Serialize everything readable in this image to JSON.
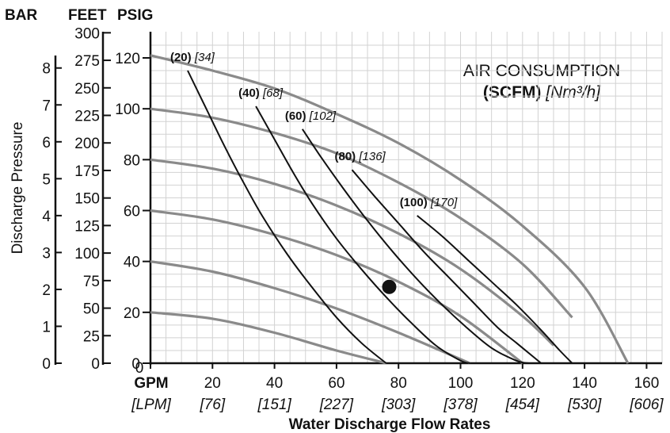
{
  "chart_data": {
    "type": "line",
    "title_line1": "AIR CONSUMPTION",
    "title_line2_bold": "(SCFM)",
    "title_line2_unit": "[Nm³/h]",
    "xlabel": "Water Discharge Flow Rates",
    "ylabel": "Discharge Pressure",
    "x_unit_primary": "GPM",
    "x_unit_secondary": "[LPM]",
    "y_headers": {
      "bar": "BAR",
      "feet": "FEET",
      "psig": "PSIG"
    },
    "xlim": [
      0,
      165
    ],
    "ylim": [
      0,
      125
    ],
    "x_ticks": [
      {
        "value": 0,
        "label": "0",
        "label2": ""
      },
      {
        "value": 20,
        "label": "20",
        "label2": "[76]"
      },
      {
        "value": 40,
        "label": "40",
        "label2": "[151]"
      },
      {
        "value": 60,
        "label": "60",
        "label2": "[227]"
      },
      {
        "value": 80,
        "label": "80",
        "label2": "[303]"
      },
      {
        "value": 100,
        "label": "100",
        "label2": "[378]"
      },
      {
        "value": 120,
        "label": "120",
        "label2": "[454]"
      },
      {
        "value": 140,
        "label": "140",
        "label2": "[530]"
      },
      {
        "value": 160,
        "label": "160",
        "label2": "[606]"
      }
    ],
    "psig_ticks": [
      0,
      20,
      40,
      60,
      80,
      100,
      120
    ],
    "feet_ticks": [
      0,
      25,
      50,
      75,
      100,
      125,
      150,
      175,
      200,
      225,
      250,
      275,
      300
    ],
    "bar_ticks": [
      0,
      1,
      2,
      3,
      4,
      5,
      6,
      7,
      8
    ],
    "performance_curves": [
      {
        "x": [
          0,
          20,
          40,
          60,
          76
        ],
        "y": [
          20,
          17.5,
          12,
          5,
          0
        ]
      },
      {
        "x": [
          0,
          20,
          40,
          60,
          80,
          103
        ],
        "y": [
          40,
          36,
          29.5,
          21.5,
          12,
          0
        ]
      },
      {
        "x": [
          0,
          20,
          40,
          60,
          80,
          100,
          120
        ],
        "y": [
          60,
          56.5,
          50.5,
          42.5,
          32,
          18.5,
          0
        ]
      },
      {
        "x": [
          0,
          20,
          40,
          60,
          80,
          100,
          120,
          130
        ],
        "y": [
          80,
          76.5,
          70.5,
          62,
          51,
          37,
          18.5,
          7
        ]
      },
      {
        "x": [
          0,
          20,
          40,
          60,
          80,
          100,
          120,
          136
        ],
        "y": [
          100,
          96.5,
          90.5,
          82.5,
          71,
          57,
          39,
          18
        ]
      },
      {
        "x": [
          0,
          20,
          40,
          60,
          80,
          100,
          120,
          140,
          154
        ],
        "y": [
          121,
          115,
          108,
          98,
          86.5,
          72,
          54,
          30,
          0
        ]
      }
    ],
    "air_consumption_curves": [
      {
        "label": "(20)",
        "label2": "[34]",
        "x": [
          12,
          18,
          24,
          30,
          36,
          44,
          52,
          60,
          68,
          76
        ],
        "y": [
          115,
          100,
          85,
          71,
          58,
          43,
          30,
          18,
          8,
          0
        ]
      },
      {
        "label": "(40)",
        "label2": "[68]",
        "x": [
          34,
          40,
          46,
          52,
          60,
          68,
          76,
          84,
          92,
          100,
          103
        ],
        "y": [
          101,
          88,
          75,
          63,
          49,
          37,
          26,
          16,
          7,
          1,
          0
        ]
      },
      {
        "label": "(60)",
        "label2": "[102]",
        "x": [
          49,
          55,
          62,
          70,
          78,
          86,
          94,
          102,
          110,
          118,
          122
        ],
        "y": [
          92,
          81,
          69,
          56,
          44,
          33,
          23,
          14,
          6,
          1,
          0
        ]
      },
      {
        "label": "(80)",
        "label2": "[136]",
        "x": [
          65,
          72,
          80,
          88,
          96,
          104,
          112,
          118,
          124,
          126
        ],
        "y": [
          76,
          66,
          55,
          44,
          34,
          24,
          14,
          8,
          2,
          0
        ]
      },
      {
        "label": "(100)",
        "label2": "[170]",
        "x": [
          86,
          94,
          102,
          110,
          118,
          126,
          132,
          136
        ],
        "y": [
          58,
          50,
          41,
          32,
          23,
          13,
          5,
          0
        ]
      }
    ],
    "marker": {
      "x": 77,
      "y": 30
    },
    "grid": true,
    "colors": {
      "performance": "#8a8a8a",
      "air": "#111111",
      "grid": "#d2d2d2",
      "marker": "#111111"
    }
  }
}
